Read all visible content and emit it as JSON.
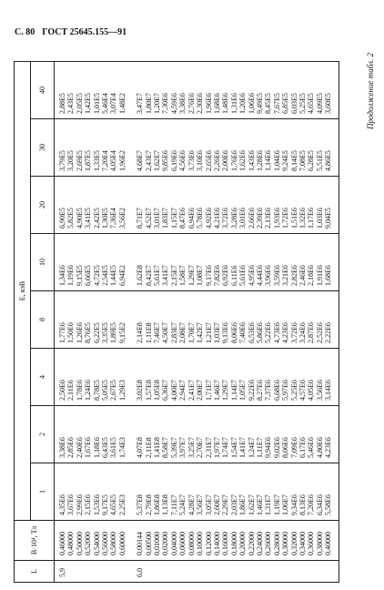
{
  "header": {
    "page": "С. 80",
    "standard": "ГОСТ 25645.155—91"
  },
  "caption": "Продолжение табл. 2",
  "table": {
    "headers": {
      "L": "L",
      "B": "B·10⁴, Тл",
      "E": "E, кэВ",
      "energies": [
        "1",
        "2",
        "4",
        "8",
        "10",
        "20",
        "30",
        "40"
      ]
    },
    "groups": [
      {
        "L": "5,9",
        "B": [
          "0,46000",
          "0,48000",
          "0,50000",
          "0,52000",
          "0,54000",
          "0,56000",
          "0,58000",
          "0,60000"
        ],
        "columns": [
          [
            "4,35E6",
            "3,67E6",
            "2,99E6",
            "2,15E6",
            "1,53E6",
            "9,17E5",
            "4,65E5",
            "2,25E3"
          ],
          [
            "3,38E6",
            "2,85E6",
            "2,40E6",
            "1,67E6",
            "1,18E6",
            "6,43E5",
            "3,61E5",
            "1,74E3"
          ],
          [
            "2,50E6",
            "2,11E6",
            "1,78E6",
            "1,24E6",
            "8,78E5",
            "5,05E5",
            "2,67E5",
            "1,29E3"
          ],
          [
            "1,77E6",
            "1,50E6",
            "1,26E6",
            "8,76E5",
            "6,22E5",
            "3,35E5",
            "1,89E5",
            "9,15E2"
          ],
          [
            "1,34E6",
            "1,19E6",
            "9,15E5",
            "6,66E5",
            "4,72E5",
            "2,54E5",
            "1,44E5",
            "6,94E2"
          ],
          [
            "6,90E5",
            "5,82E5",
            "4,90E5",
            "3,41E5",
            "2,42E5",
            "1,30E5",
            "7,36E4",
            "3,56E2"
          ],
          [
            "3,79E5",
            "3,20E5",
            "2,69E5",
            "1,87E5",
            "1,33E5",
            "7,20E4",
            "4,05E4",
            "1,96E2"
          ],
          [
            "2,88E5",
            "2,43E5",
            "2,05E5",
            "1,42E5",
            "1,01E5",
            "5,46E4",
            "3,07E4",
            "1,48E2"
          ]
        ]
      },
      {
        "L": "6,0",
        "B": [
          "0,00144",
          "0,00500",
          "0,01000",
          "0,02000",
          "0,04000",
          "0,06000",
          "0,08000",
          "0,10000",
          "0,12000",
          "0,14000",
          "0,16000",
          "0,18000",
          "0,20000",
          "0,22000",
          "0,24000",
          "0,26000",
          "0,28000",
          "0,30000",
          "0,32000",
          "0,34000",
          "0,36000",
          "0,38000",
          "0,40000"
        ],
        "columns": [
          [
            "5,37E8",
            "2,79E8",
            "1,86E8",
            "1,13E8",
            "7,11E7",
            "5,24E7",
            "4,28E7",
            "3,56E7",
            "3,05E7",
            "2,60E7",
            "2,29E7",
            "2,03E7",
            "1,86E7",
            "1,62E7",
            "1,46E7",
            "1,31E7",
            "1,19E7",
            "1,06E7",
            "9,34E6",
            "8,13E6",
            "7,20E6",
            "6,34E6",
            "5,58E6"
          ],
          [
            "4,07E8",
            "2,11E8",
            "1,41E8",
            "8,58E7",
            "5,39E7",
            "3,97E7",
            "3,25E7",
            "2,70E7",
            "2,31E7",
            "1,97E7",
            "1,74E7",
            "1,54E7",
            "1,41E7",
            "1,24E7",
            "1,11E7",
            "9,94E6",
            "9,02E6",
            "8,06E6",
            "7,09E6",
            "6,17E6",
            "5,46E6",
            "4,80E6",
            "4,23E6"
          ],
          [
            "3,02E8",
            "1,57E8",
            "1,05E8",
            "6,36E7",
            "4,00E7",
            "2,94E7",
            "2,41E7",
            "2,00E7",
            "1,71E7",
            "1,46E7",
            "1,29E7",
            "1,14E7",
            "1,05E7",
            "9,22E6",
            "8,27E6",
            "7,37E6",
            "6,68E6",
            "5,97E6",
            "5,25E6",
            "4,57E6",
            "4,05E6",
            "3,56E6",
            "3,14E6"
          ],
          [
            "2,14E8",
            "1,11E8",
            "7,46E7",
            "4,50E7",
            "2,83E7",
            "2,08E7",
            "1,70E7",
            "1,42E7",
            "1,21E7",
            "1,03E7",
            "9,13E6",
            "8,06E6",
            "7,40E6",
            "6,53E6",
            "5,86E6",
            "5,22E6",
            "4,73E6",
            "4,23E6",
            "3,72E6",
            "3,24E6",
            "2,87E6",
            "2,52E6",
            "2,22E6"
          ],
          [
            "1,62E8",
            "8,42E7",
            "5,61E7",
            "3,41E7",
            "2,15E7",
            "1,58E7",
            "1,29E7",
            "1,08E7",
            "9,17E6",
            "7,82E6",
            "6,92E6",
            "6,11E6",
            "5,61E6",
            "4,95E6",
            "4,44E6",
            "3,96E6",
            "3,59E6",
            "3,21E6",
            "2,82E6",
            "2,46E6",
            "2,18E6",
            "1,91E6",
            "1,68E6"
          ],
          [
            "8,71E7",
            "4,52E7",
            "3,01E7",
            "1,83E7",
            "1,15E7",
            "8,47E6",
            "6,94E6",
            "5,78E6",
            "4,92E6",
            "4,21E6",
            "3,72E6",
            "3,28E6",
            "3,01E6",
            "2,66E6",
            "2,39E6",
            "2,13E6",
            "1,93E6",
            "1,72E6",
            "1,51E6",
            "1,32E6",
            "1,17E6",
            "1,03E6",
            "9,04E5"
          ],
          [
            "4,68E7",
            "2,43E7",
            "1,62E7",
            "9,85E6",
            "6,19E6",
            "4,56E6",
            "3,73E6",
            "3,10E6",
            "2,65E6",
            "2,26E6",
            "2,00E6",
            "1,76E6",
            "1,62E6",
            "1,43E6",
            "1,28E6",
            "1,14E6",
            "1,04E6",
            "9,24E5",
            "8,14E5",
            "7,08E5",
            "6,28E5",
            "5,51E5",
            "4,86E5"
          ],
          [
            "3,47E7",
            "1,80E7",
            "1,20E7",
            "7,30E6",
            "4,59E6",
            "3,38E6",
            "2,76E6",
            "2,30E6",
            "1,96E6",
            "1,68E6",
            "1,48E6",
            "1,31E6",
            "1,20E6",
            "1,06E6",
            "9,49E5",
            "8,45E5",
            "7,67E5",
            "6,85E5",
            "6,03E5",
            "5,25E5",
            "4,65E5",
            "4,09E5",
            "3,60E5"
          ]
        ]
      }
    ]
  }
}
